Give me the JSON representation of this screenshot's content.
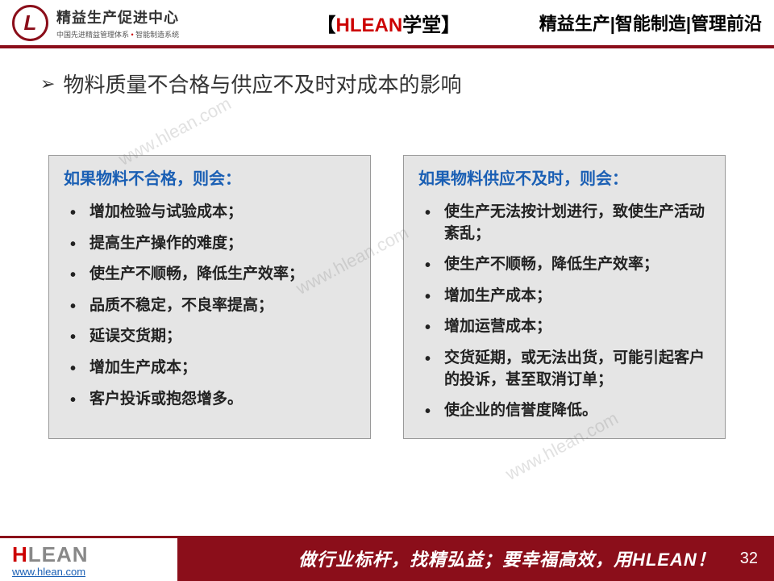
{
  "header": {
    "logo_title": "精益生产促进中心",
    "logo_subtitle_a": "中国先进精益管理体系",
    "logo_subtitle_b": "智能制造系统",
    "center_bracket_l": "【",
    "center_hlean": "HLEAN",
    "center_school": "学堂",
    "center_bracket_r": "】",
    "right_text": "精益生产|智能制造|管理前沿"
  },
  "heading": "物料质量不合格与供应不及时对成本的影响",
  "box_left": {
    "title": "如果物料不合格，则会：",
    "items": [
      "增加检验与试验成本；",
      "提高生产操作的难度；",
      "使生产不顺畅，降低生产效率；",
      "品质不稳定，不良率提高；",
      "延误交货期；",
      "增加生产成本；",
      "客户投诉或抱怨增多。"
    ]
  },
  "box_right": {
    "title": "如果物料供应不及时，则会：",
    "items": [
      "使生产无法按计划进行，致使生产活动紊乱；",
      "使生产不顺畅，降低生产效率；",
      "增加生产成本；",
      "增加运营成本；",
      "交货延期，或无法出货，可能引起客户的投诉，甚至取消订单；",
      "使企业的信誉度降低。"
    ]
  },
  "watermark": "www.hlean.com",
  "footer": {
    "logo_h": "H",
    "logo_lean": "LEAN",
    "url": "www.hlean.com",
    "slogan": "做行业标杆，找精弘益；要幸福高效，用HLEAN！",
    "page": "32"
  },
  "colors": {
    "brand_red": "#8b0e1a",
    "accent_red": "#c00",
    "box_bg": "#e5e5e5",
    "title_blue": "#1a5fb4"
  }
}
